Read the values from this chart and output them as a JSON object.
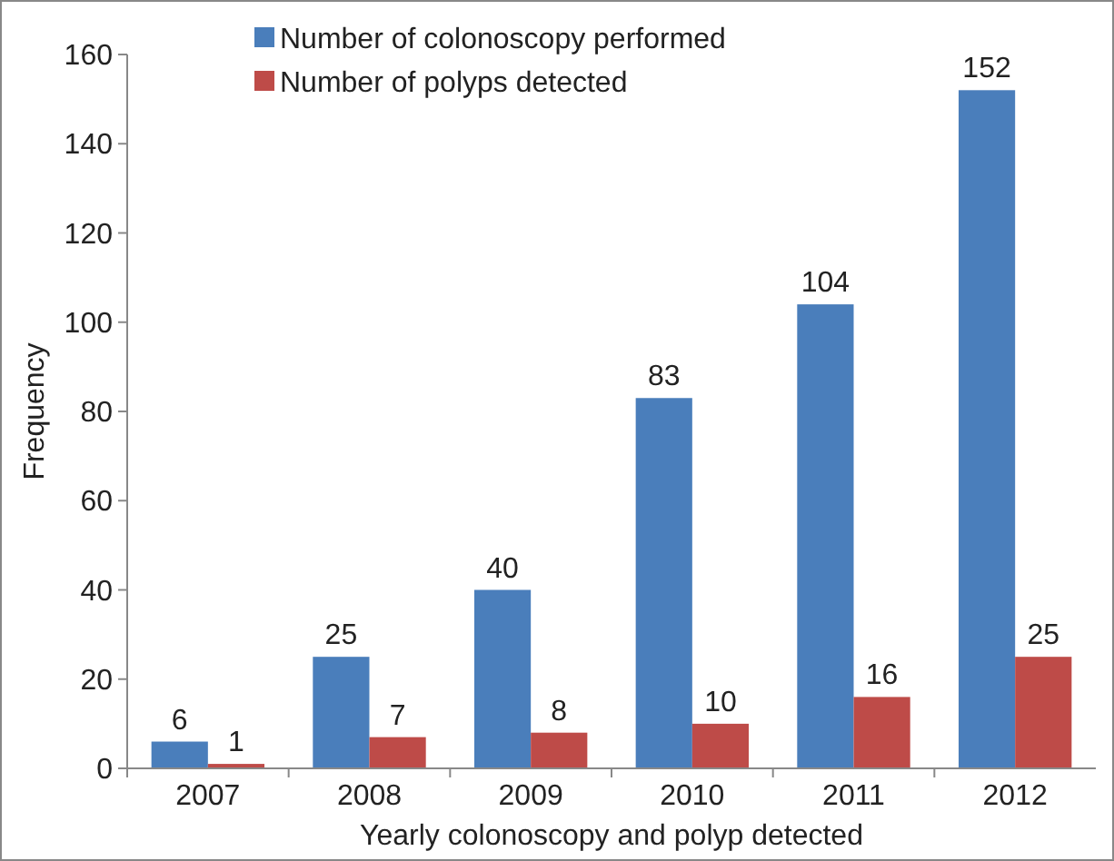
{
  "chart_data": {
    "type": "bar",
    "xlabel": "Yearly colonoscopy and polyp detected",
    "ylabel": "Frequency",
    "categories": [
      "2007",
      "2008",
      "2009",
      "2010",
      "2011",
      "2012"
    ],
    "series": [
      {
        "name": "Number of colonoscopy performed",
        "color": "#4a7ebb",
        "values": [
          6,
          25,
          40,
          83,
          104,
          152
        ]
      },
      {
        "name": "Number of polyps detected",
        "color": "#be4b48",
        "values": [
          1,
          7,
          8,
          10,
          16,
          25
        ]
      }
    ],
    "ylim": [
      0,
      160
    ],
    "yticks": [
      0,
      20,
      40,
      60,
      80,
      100,
      120,
      140,
      160
    ],
    "data_labels": true,
    "legend": "top",
    "grid": false
  }
}
